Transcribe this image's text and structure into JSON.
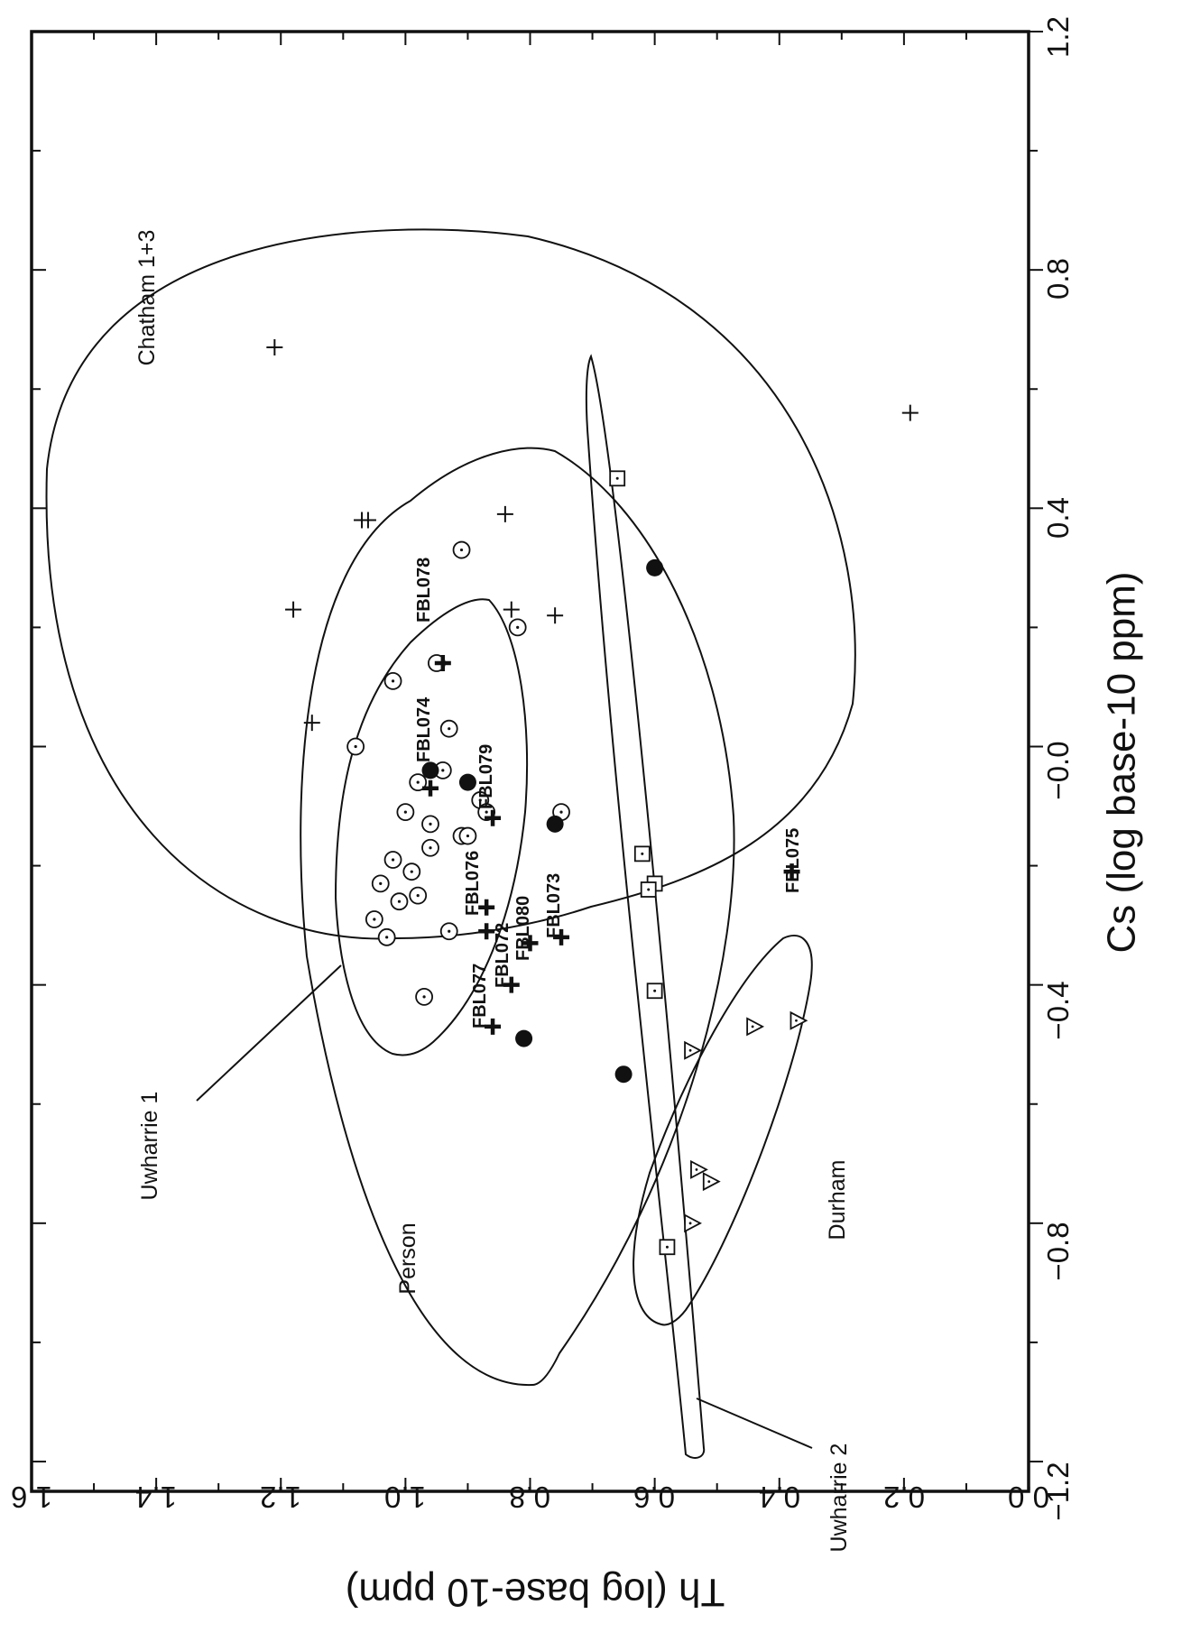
{
  "chart_data": {
    "type": "scatter",
    "xlabel": "Th (log base-10 ppm)",
    "ylabel": "Cs (log base-10 ppm)",
    "xlim": [
      0.0,
      1.6
    ],
    "ylim": [
      -1.25,
      1.2
    ],
    "x_ticks": [
      "0.0",
      "0.2",
      "0.4",
      "0.6",
      "0.8",
      "1.0",
      "1.2",
      "1.4",
      "1.6"
    ],
    "y_ticks": [
      "−1.2",
      "−0.8",
      "−0.4",
      "−0.0",
      "0.4",
      "0.8",
      "1.2"
    ],
    "series": [
      {
        "marker": "plus",
        "points": [
          [
            1.21,
            0.67
          ],
          [
            1.07,
            0.38
          ],
          [
            1.06,
            0.38
          ],
          [
            1.18,
            0.23
          ],
          [
            0.84,
            0.39
          ],
          [
            0.83,
            0.23
          ],
          [
            0.76,
            0.22
          ],
          [
            1.15,
            0.04
          ],
          [
            0.19,
            0.56
          ]
        ]
      },
      {
        "marker": "dotted-circle",
        "points": [
          [
            1.08,
            0.0
          ],
          [
            0.98,
            -0.06
          ],
          [
            1.0,
            -0.11
          ],
          [
            0.96,
            -0.13
          ],
          [
            1.02,
            -0.19
          ],
          [
            0.96,
            -0.17
          ],
          [
            1.04,
            -0.23
          ],
          [
            0.99,
            -0.21
          ],
          [
            1.01,
            -0.26
          ],
          [
            0.98,
            -0.25
          ],
          [
            1.05,
            -0.29
          ],
          [
            1.03,
            -0.32
          ],
          [
            0.93,
            -0.31
          ],
          [
            0.97,
            -0.42
          ],
          [
            1.02,
            0.11
          ],
          [
            0.93,
            0.03
          ],
          [
            0.94,
            -0.04
          ],
          [
            0.91,
            -0.15
          ],
          [
            0.9,
            -0.15
          ],
          [
            0.88,
            -0.09
          ],
          [
            0.87,
            -0.11
          ],
          [
            0.75,
            -0.11
          ],
          [
            0.91,
            0.33
          ],
          [
            0.82,
            0.2
          ],
          [
            0.95,
            0.14
          ]
        ]
      },
      {
        "marker": "filled-circle",
        "points": [
          [
            0.96,
            -0.04
          ],
          [
            0.9,
            -0.06
          ],
          [
            0.76,
            -0.13
          ],
          [
            0.6,
            0.3
          ],
          [
            0.81,
            -0.49
          ],
          [
            0.65,
            -0.55
          ]
        ]
      },
      {
        "marker": "dotted-square",
        "points": [
          [
            0.66,
            0.45
          ],
          [
            0.62,
            -0.18
          ],
          [
            0.6,
            -0.23
          ],
          [
            0.61,
            -0.24
          ],
          [
            0.6,
            -0.41
          ],
          [
            0.58,
            -0.84
          ]
        ]
      },
      {
        "marker": "dotted-triangle",
        "points": [
          [
            0.54,
            -0.51
          ],
          [
            0.44,
            -0.47
          ],
          [
            0.37,
            -0.46
          ],
          [
            0.53,
            -0.71
          ],
          [
            0.51,
            -0.73
          ],
          [
            0.54,
            -0.8
          ]
        ]
      },
      {
        "marker": "bold-plus",
        "points": [
          [
            0.94,
            0.14
          ],
          [
            0.96,
            -0.07
          ],
          [
            0.86,
            -0.12
          ],
          [
            0.87,
            -0.27
          ],
          [
            0.87,
            -0.31
          ],
          [
            0.75,
            -0.32
          ],
          [
            0.8,
            -0.33
          ],
          [
            0.83,
            -0.4
          ],
          [
            0.86,
            -0.47
          ],
          [
            0.38,
            -0.21
          ]
        ]
      }
    ],
    "sample_labels": [
      "FBL078",
      "FBL074",
      "FBL079",
      "FBL076",
      "FBL073",
      "FBL080",
      "FBL072",
      "FBL077",
      "FBL075"
    ],
    "regions": [
      "Chatham 1+3",
      "Person",
      "Uwharrie 1",
      "Uwharrie 2",
      "Durham"
    ]
  }
}
